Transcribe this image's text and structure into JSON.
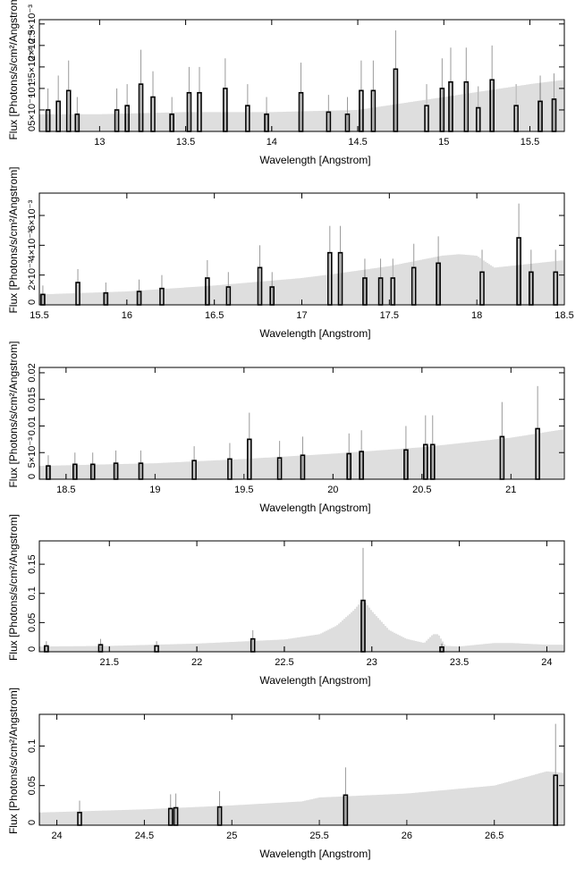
{
  "figure": {
    "background": "#ffffff",
    "model_color": "#bdbdbd",
    "data_color": "#000000",
    "error_color": "#9a9a9a"
  },
  "chart_data": [
    {
      "type": "line",
      "title": "",
      "xlabel": "Wavelength [Angstrom]",
      "ylabel": "Flux [Photons/s/cm²/Angstrom]",
      "xlim": [
        12.65,
        15.7
      ],
      "ylim": [
        0,
        0.0026
      ],
      "xticks": [
        13,
        13.5,
        14,
        14.5,
        15,
        15.5
      ],
      "xtick_labels": [
        "13",
        "13.5",
        "14",
        "14.5",
        "15",
        "15.5"
      ],
      "yticks": [
        0,
        0.0005,
        0.001,
        0.0015,
        0.002,
        0.0025
      ],
      "ytick_labels": [
        "0",
        "5×10⁻⁴",
        "10⁻³",
        "1.5×10⁻³",
        "2×10⁻³",
        "2.5×10⁻³"
      ],
      "model": {
        "x": [
          12.65,
          13.0,
          13.5,
          14.0,
          14.5,
          15.0,
          15.5,
          15.7
        ],
        "y": [
          0.0004,
          0.0004,
          0.00045,
          0.00045,
          0.0005,
          0.0008,
          0.0011,
          0.0012
        ]
      },
      "data": {
        "x": [
          12.7,
          12.76,
          12.82,
          12.87,
          13.1,
          13.16,
          13.24,
          13.31,
          13.42,
          13.52,
          13.58,
          13.73,
          13.86,
          13.97,
          14.17,
          14.33,
          14.44,
          14.52,
          14.59,
          14.72,
          14.9,
          14.99,
          15.04,
          15.13,
          15.2,
          15.28,
          15.42,
          15.56,
          15.64
        ],
        "y": [
          0.0005,
          0.0007,
          0.00095,
          0.0004,
          0.0005,
          0.0006,
          0.0011,
          0.0008,
          0.0004,
          0.0009,
          0.0009,
          0.001,
          0.0006,
          0.0004,
          0.0009,
          0.00045,
          0.0004,
          0.00095,
          0.00095,
          0.00145,
          0.0006,
          0.001,
          0.00115,
          0.00115,
          0.00055,
          0.0012,
          0.0006,
          0.0007,
          0.00075
        ],
        "err": [
          0.0005,
          0.0006,
          0.0007,
          0.0004,
          0.0005,
          0.0005,
          0.0008,
          0.0006,
          0.0004,
          0.0006,
          0.0006,
          0.0007,
          0.0005,
          0.0004,
          0.0007,
          0.0004,
          0.0004,
          0.0007,
          0.0007,
          0.0009,
          0.0005,
          0.0007,
          0.0008,
          0.0008,
          0.0005,
          0.0008,
          0.0005,
          0.0006,
          0.0006
        ]
      }
    },
    {
      "type": "line",
      "title": "",
      "xlabel": "Wavelength [Angstrom]",
      "ylabel": "Flux [Photons/s/cm²/Angstrom]",
      "xlim": [
        15.5,
        18.5
      ],
      "ylim": [
        0,
        0.0075
      ],
      "xticks": [
        15.5,
        16,
        16.5,
        17,
        17.5,
        18,
        18.5
      ],
      "xtick_labels": [
        "15.5",
        "16",
        "16.5",
        "17",
        "17.5",
        "18",
        "18.5"
      ],
      "yticks": [
        0,
        0.002,
        0.004,
        0.006
      ],
      "ytick_labels": [
        "0",
        "2×10⁻³",
        "4×10⁻³",
        "6×10⁻³"
      ],
      "model": {
        "x": [
          15.5,
          16.0,
          16.5,
          17.0,
          17.2,
          17.5,
          17.8,
          17.9,
          18.0,
          18.1,
          18.5
        ],
        "y": [
          0.0007,
          0.0009,
          0.0013,
          0.0018,
          0.0021,
          0.0026,
          0.0033,
          0.0034,
          0.0033,
          0.0025,
          0.003
        ]
      },
      "data": {
        "x": [
          15.52,
          15.72,
          15.88,
          16.07,
          16.2,
          16.46,
          16.58,
          16.76,
          16.83,
          17.16,
          17.22,
          17.36,
          17.45,
          17.52,
          17.64,
          17.78,
          18.03,
          18.24,
          18.31,
          18.45
        ],
        "y": [
          0.0007,
          0.0015,
          0.0008,
          0.0009,
          0.0011,
          0.0018,
          0.0012,
          0.0025,
          0.0012,
          0.0035,
          0.0035,
          0.0018,
          0.0018,
          0.0018,
          0.0025,
          0.0028,
          0.0022,
          0.0045,
          0.0022,
          0.0022
        ],
        "err": [
          0.0006,
          0.0009,
          0.0007,
          0.0008,
          0.0009,
          0.0012,
          0.001,
          0.0015,
          0.001,
          0.0018,
          0.0018,
          0.0013,
          0.0013,
          0.0013,
          0.0016,
          0.0018,
          0.0015,
          0.0023,
          0.0015,
          0.0015
        ]
      }
    },
    {
      "type": "line",
      "title": "",
      "xlabel": "Wavelength [Angstrom]",
      "ylabel": "Flux [Photons/s/cm²/Angstrom]",
      "xlim": [
        18.35,
        21.3
      ],
      "ylim": [
        0,
        0.021
      ],
      "xticks": [
        18.5,
        19,
        19.5,
        20,
        20.5,
        21
      ],
      "xtick_labels": [
        "18.5",
        "19",
        "19.5",
        "20",
        "20.5",
        "21"
      ],
      "yticks": [
        0,
        0.005,
        0.01,
        0.015,
        0.02
      ],
      "ytick_labels": [
        "0",
        "5×10⁻³",
        "0.01",
        "0.015",
        "0.02"
      ],
      "model": {
        "x": [
          18.35,
          19.0,
          19.5,
          20.0,
          20.5,
          21.0,
          21.3
        ],
        "y": [
          0.0025,
          0.003,
          0.0038,
          0.0048,
          0.006,
          0.0078,
          0.0094
        ]
      },
      "data": {
        "x": [
          18.4,
          18.55,
          18.65,
          18.78,
          18.92,
          19.22,
          19.42,
          19.53,
          19.7,
          19.83,
          20.09,
          20.16,
          20.41,
          20.52,
          20.56,
          20.95,
          21.15
        ],
        "y": [
          0.0025,
          0.0028,
          0.0028,
          0.003,
          0.003,
          0.0035,
          0.0038,
          0.0075,
          0.004,
          0.0045,
          0.0048,
          0.0052,
          0.0055,
          0.0065,
          0.0065,
          0.008,
          0.0095
        ],
        "err": [
          0.002,
          0.0022,
          0.0022,
          0.0024,
          0.0024,
          0.0027,
          0.003,
          0.005,
          0.0032,
          0.0035,
          0.0038,
          0.004,
          0.0045,
          0.0055,
          0.0055,
          0.0065,
          0.008
        ]
      }
    },
    {
      "type": "line",
      "title": "",
      "xlabel": "Wavelength [Angstrom]",
      "ylabel": "Flux [Photons/s/cm²/Angstrom]",
      "xlim": [
        21.1,
        24.1
      ],
      "ylim": [
        0,
        0.19
      ],
      "xticks": [
        21.5,
        22,
        22.5,
        23,
        23.5,
        24
      ],
      "xtick_labels": [
        "21.5",
        "22",
        "22.5",
        "23",
        "23.5",
        "24"
      ],
      "yticks": [
        0,
        0.05,
        0.1,
        0.15
      ],
      "ytick_labels": [
        "0",
        "0.05",
        "0.1",
        "0.15"
      ],
      "model": {
        "x": [
          21.1,
          21.5,
          22.0,
          22.5,
          22.7,
          22.8,
          22.9,
          22.95,
          23.0,
          23.1,
          23.2,
          23.3,
          23.35,
          23.38,
          23.42,
          23.5,
          23.7,
          23.8,
          24.0,
          24.1
        ],
        "y": [
          0.009,
          0.01,
          0.014,
          0.021,
          0.03,
          0.045,
          0.072,
          0.09,
          0.07,
          0.037,
          0.022,
          0.015,
          0.03,
          0.03,
          0.01,
          0.009,
          0.015,
          0.015,
          0.012,
          0.012
        ]
      },
      "data": {
        "x": [
          21.14,
          21.45,
          21.77,
          22.32,
          22.95,
          23.4
        ],
        "y": [
          0.01,
          0.012,
          0.01,
          0.022,
          0.088,
          0.008
        ],
        "err": [
          0.008,
          0.01,
          0.008,
          0.015,
          0.09,
          0.006
        ]
      }
    },
    {
      "type": "line",
      "title": "",
      "xlabel": "Wavelength [Angstrom]",
      "ylabel": "Flux [Photons/s/cm²/Angstrom]",
      "xlim": [
        23.9,
        26.9
      ],
      "ylim": [
        0,
        0.14
      ],
      "xticks": [
        24,
        24.5,
        25,
        25.5,
        26,
        26.5
      ],
      "xtick_labels": [
        "24",
        "24.5",
        "25",
        "25.5",
        "26",
        "26.5"
      ],
      "yticks": [
        0,
        0.05,
        0.1
      ],
      "ytick_labels": [
        "0",
        "0.05",
        "0.1"
      ],
      "model": {
        "x": [
          23.9,
          24.5,
          25.0,
          25.4,
          25.5,
          26.0,
          26.5,
          26.8,
          26.9
        ],
        "y": [
          0.016,
          0.02,
          0.025,
          0.03,
          0.035,
          0.04,
          0.05,
          0.068,
          0.066
        ]
      },
      "data": {
        "x": [
          24.13,
          24.65,
          24.68,
          24.93,
          25.65,
          26.85
        ],
        "y": [
          0.016,
          0.021,
          0.022,
          0.023,
          0.038,
          0.063
        ],
        "err": [
          0.015,
          0.018,
          0.018,
          0.02,
          0.035,
          0.065
        ]
      }
    }
  ]
}
